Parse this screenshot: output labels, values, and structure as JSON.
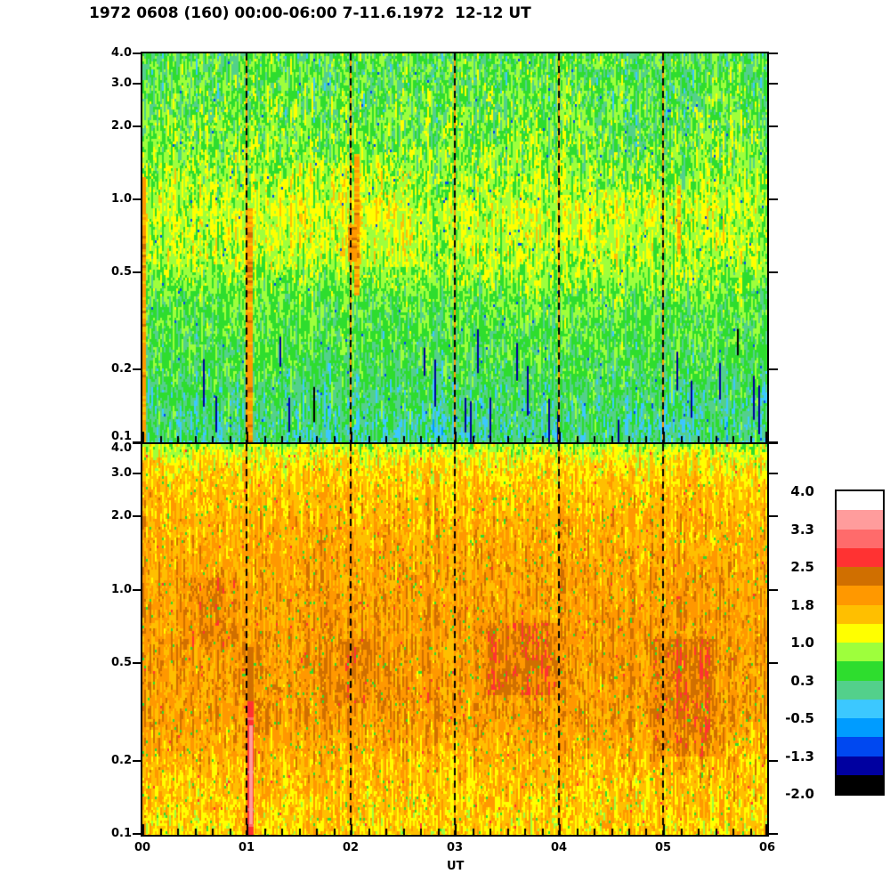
{
  "title": "1972 0608 (160) 00:00-06:00 7-11.6.1972  12-12 UT",
  "chart_data": {
    "type": "heatmap",
    "subtype": "dual-panel spectrogram, time vs log-frequency, riometer/pulsation style",
    "xlabel": "UT",
    "x_tick_labels": [
      "00",
      "01",
      "02",
      "03",
      "04",
      "05",
      "06"
    ],
    "x_hours": [
      0,
      1,
      2,
      3,
      4,
      5,
      6
    ],
    "x_minor_per_hour": 6,
    "y_scale": "log",
    "y_range": [
      0.1,
      4.0
    ],
    "y_tick_values": [
      4.0,
      3.0,
      2.0,
      1.0,
      0.5,
      0.2,
      0.1
    ],
    "y_tick_labels": [
      "4.0",
      "3.0",
      "2.0",
      "1.0",
      "0.5",
      "0.2",
      "0.1"
    ],
    "dashed_gridlines_ut": [
      1,
      2,
      3,
      4,
      5
    ],
    "gridline_under_color": "#ff9800",
    "gridline_dash_color": "#000000",
    "colorbar": {
      "range": [
        -2.0,
        4.0
      ],
      "labels": [
        "4.0",
        "3.3",
        "2.5",
        "1.8",
        "1.0",
        "0.3",
        "-0.5",
        "-1.3",
        "-2.0"
      ],
      "colors_top_to_bottom": [
        "#ffffff",
        "#ff9c9c",
        "#ff6b6b",
        "#ff3232",
        "#d06f00",
        "#ff9800",
        "#ffbf00",
        "#ffff00",
        "#9eff3c",
        "#2edd2e",
        "#53d08b",
        "#3cc8ff",
        "#009cff",
        "#0048f0",
        "#0000a0",
        "#000000"
      ]
    },
    "panels": [
      {
        "name": "upper-panel",
        "seed": 1972,
        "profile": [
          [
            0.0,
            0.42,
            0.5
          ],
          [
            0.12,
            0.52,
            0.55
          ],
          [
            0.3,
            0.72,
            0.52
          ],
          [
            0.4,
            0.95,
            0.42
          ],
          [
            0.52,
            0.88,
            0.45
          ],
          [
            0.64,
            0.52,
            0.4
          ],
          [
            0.8,
            0.38,
            0.4
          ],
          [
            0.9,
            0.18,
            0.42
          ],
          [
            1.0,
            0.06,
            0.45
          ]
        ],
        "speck": {
          "prob": 0.004,
          "value": -1.0
        },
        "spikes": {
          "prob": 0.055,
          "fmin": 0.7,
          "fmax": 0.95,
          "lmin": 0.04,
          "lmax": 0.13,
          "value": -1.25
        },
        "patches": [
          {
            "h0": 1.3,
            "h1": 2.6,
            "f0": 0.28,
            "f1": 0.55,
            "dv": 0.15
          },
          {
            "h0": 4.2,
            "h1": 5.3,
            "f0": 0.04,
            "f1": 0.35,
            "dv": -0.12
          }
        ],
        "streaks": [
          {
            "hour": 0.02,
            "width": 4,
            "f0": 0.32,
            "f1": 1.0,
            "value": 1.9,
            "jitter": 0.25
          },
          {
            "hour": 1.035,
            "width": 6,
            "f0": 0.4,
            "f1": 1.0,
            "value": 1.95,
            "jitter": 0.3
          },
          {
            "hour": 2.06,
            "width": 6,
            "f0": 0.26,
            "f1": 0.62,
            "value": 1.9,
            "jitter": 0.35
          },
          {
            "hour": 2.02,
            "width": 10,
            "f0": 0.44,
            "f1": 0.53,
            "value": 2.0,
            "jitter": 0.3
          },
          {
            "hour": 5.15,
            "width": 4,
            "f0": 0.34,
            "f1": 0.52,
            "value": 1.7,
            "jitter": 0.4
          }
        ]
      },
      {
        "name": "lower-panel",
        "seed": 608,
        "profile": [
          [
            0.0,
            0.85,
            0.45
          ],
          [
            0.04,
            1.3,
            0.45
          ],
          [
            0.12,
            1.6,
            0.42
          ],
          [
            0.3,
            1.82,
            0.38
          ],
          [
            0.5,
            1.92,
            0.36
          ],
          [
            0.7,
            1.92,
            0.4
          ],
          [
            0.85,
            1.6,
            0.45
          ],
          [
            1.0,
            1.42,
            0.48
          ]
        ],
        "speck": {
          "prob": 0.018,
          "value": 0.45
        },
        "speck2": {
          "prob": 0.004,
          "value": 2.7
        },
        "patches": [
          {
            "h0": 3.3,
            "h1": 4.0,
            "f0": 0.46,
            "f1": 0.64,
            "dv": 0.32
          },
          {
            "h0": 4.9,
            "h1": 5.5,
            "f0": 0.5,
            "f1": 0.8,
            "dv": 0.3
          },
          {
            "h0": 1.9,
            "h1": 2.2,
            "f0": 0.5,
            "f1": 0.66,
            "dv": 0.25
          },
          {
            "h0": 0.4,
            "h1": 0.9,
            "f0": 0.34,
            "f1": 0.52,
            "dv": 0.18
          }
        ],
        "streaks": [
          {
            "hour": 1.03,
            "width": 8,
            "f0": 0.52,
            "f1": 0.68,
            "value": 2.3,
            "jitter": 0.15
          },
          {
            "hour": 1.03,
            "width": 9,
            "f0": 0.66,
            "f1": 1.0,
            "value": 2.75,
            "jitter": 0.15
          },
          {
            "hour": 1.045,
            "width": 4,
            "f0": 0.72,
            "f1": 0.97,
            "value": 3.35,
            "jitter": 0.1
          }
        ]
      }
    ]
  }
}
